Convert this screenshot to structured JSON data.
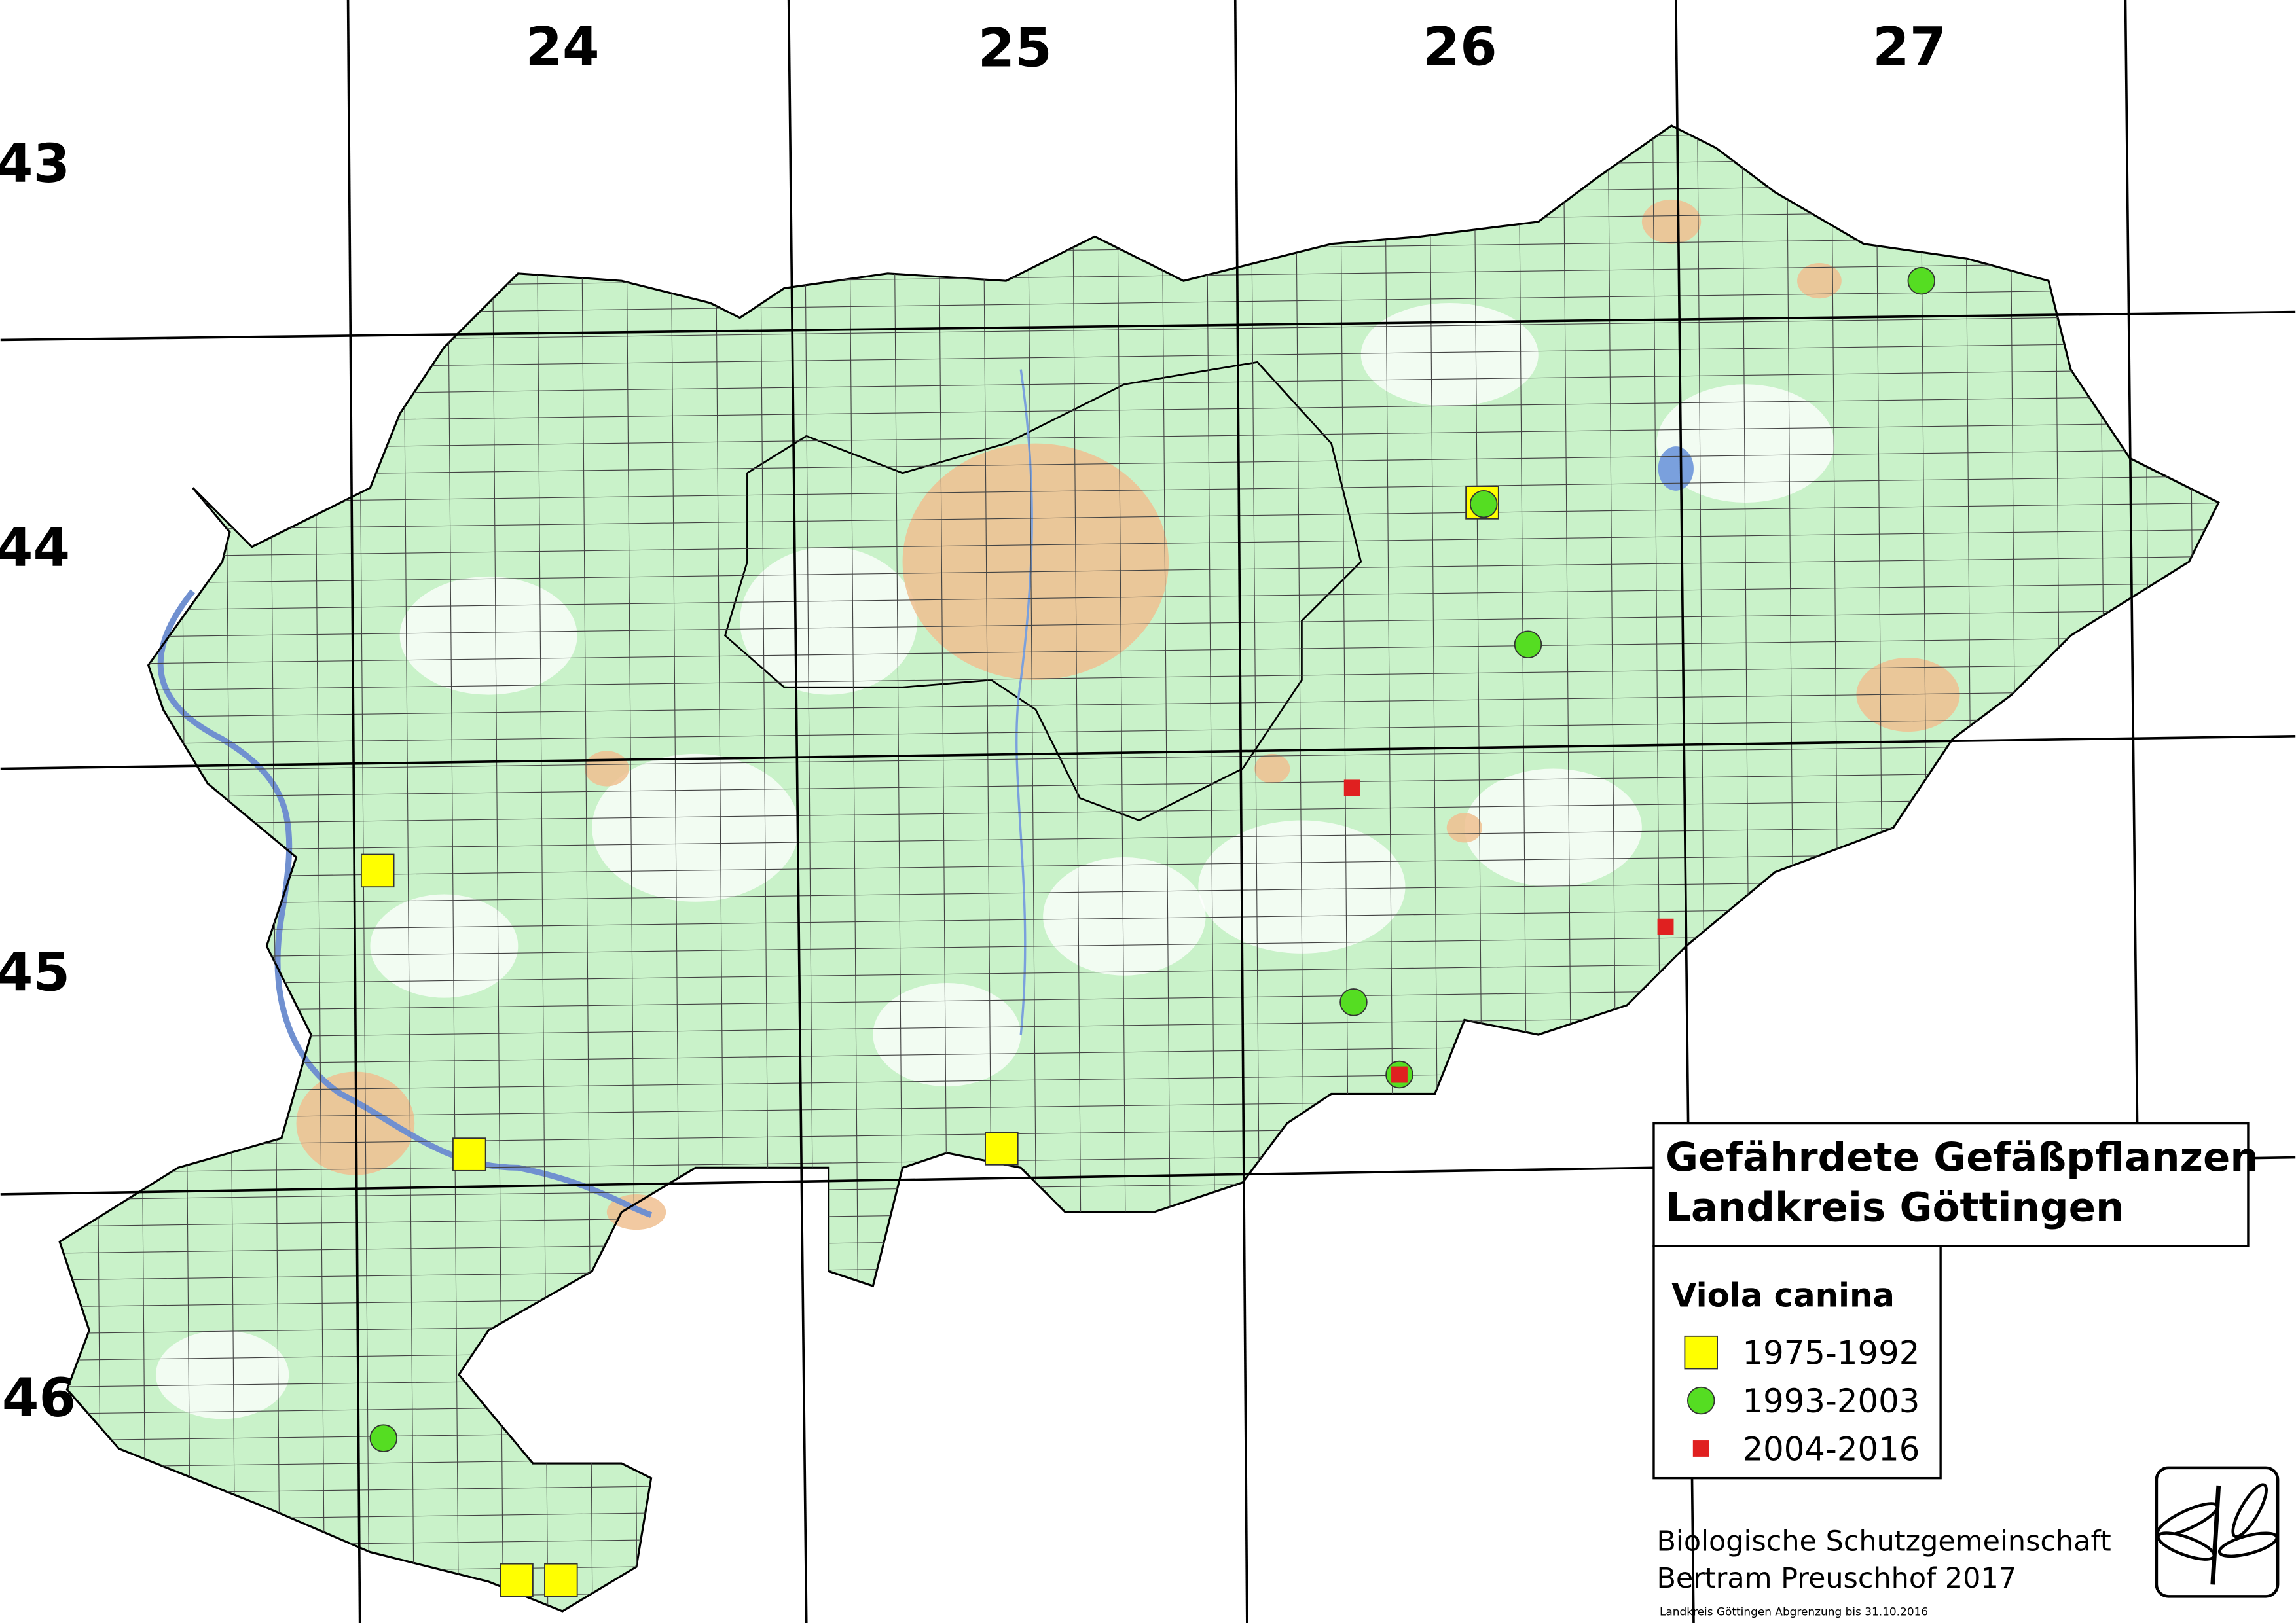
{
  "sheet_grid": {
    "columns": [
      "24",
      "25",
      "26",
      "27"
    ],
    "rows": [
      "43",
      "44",
      "45",
      "46"
    ]
  },
  "title": {
    "line1": "Gefährdete Gefäßpflanzen",
    "line2": "Landkreis Göttingen"
  },
  "legend": {
    "species": "Viola canina",
    "entries": [
      {
        "label": "1975-1992",
        "color": "#ffff00",
        "shape": "square"
      },
      {
        "label": "1993-2003",
        "color": "#55dd22",
        "shape": "circle"
      },
      {
        "label": "2004-2016",
        "color": "#e02020",
        "shape": "small-square"
      }
    ]
  },
  "credits": {
    "line1": "Biologische Schutzgemeinschaft",
    "line2": "Bertram Preuschhof 2017",
    "note": "Landkreis Göttingen Abgrenzung bis 31.10.2016"
  }
}
